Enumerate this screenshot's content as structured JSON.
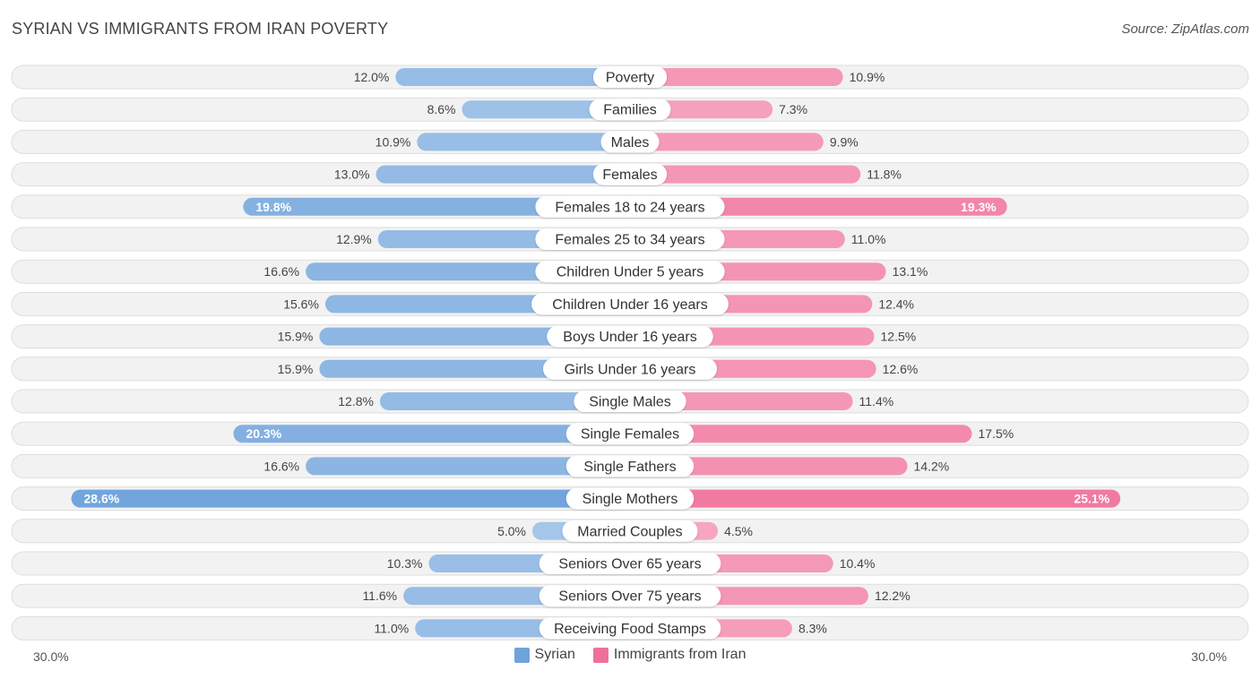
{
  "header": {
    "title": "SYRIAN VS IMMIGRANTS FROM IRAN POVERTY",
    "source": "Source: ZipAtlas.com"
  },
  "axis": {
    "left_label": "30.0%",
    "right_label": "30.0%"
  },
  "legend": {
    "syrian": "Syrian",
    "iran": "Immigrants from Iran"
  },
  "colors": {
    "syrian": "#6fa3dc",
    "iran": "#f06f99"
  },
  "chart_data": {
    "type": "bar",
    "title": "SYRIAN VS IMMIGRANTS FROM IRAN POVERTY",
    "orientation": "diverging-horizontal",
    "unit": "%",
    "xlim": [
      0,
      30
    ],
    "categories": [
      "Poverty",
      "Families",
      "Males",
      "Females",
      "Females 18 to 24 years",
      "Females 25 to 34 years",
      "Children Under 5 years",
      "Children Under 16 years",
      "Boys Under 16 years",
      "Girls Under 16 years",
      "Single Males",
      "Single Females",
      "Single Fathers",
      "Single Mothers",
      "Married Couples",
      "Seniors Over 65 years",
      "Seniors Over 75 years",
      "Receiving Food Stamps"
    ],
    "series": [
      {
        "name": "Syrian",
        "values": [
          12.0,
          8.6,
          10.9,
          13.0,
          19.8,
          12.9,
          16.6,
          15.6,
          15.9,
          15.9,
          12.8,
          20.3,
          16.6,
          28.6,
          5.0,
          10.3,
          11.6,
          11.0
        ]
      },
      {
        "name": "Immigrants from Iran",
        "values": [
          10.9,
          7.3,
          9.9,
          11.8,
          19.3,
          11.0,
          13.1,
          12.4,
          12.5,
          12.6,
          11.4,
          17.5,
          14.2,
          25.1,
          4.5,
          10.4,
          12.2,
          8.3
        ]
      }
    ]
  }
}
